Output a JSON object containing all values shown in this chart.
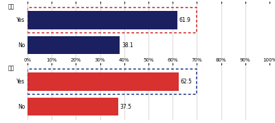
{
  "father_label": "父親",
  "mother_label": "母親",
  "categories": [
    "Yes",
    "No"
  ],
  "father_values": [
    61.9,
    38.1
  ],
  "mother_values": [
    62.5,
    37.5
  ],
  "bar_color_father": "#1a2060",
  "bar_color_mother": "#d93030",
  "box_color_father": "#cc2020",
  "box_color_mother": "#1a3080",
  "axis_ticks": [
    0,
    10,
    20,
    30,
    40,
    50,
    60,
    70,
    80,
    90,
    100
  ],
  "xlim": [
    0,
    100
  ],
  "bg_color": "#ffffff",
  "grid_color": "#bbbbbb",
  "label_fontsize": 5.5,
  "tick_fontsize": 5.0,
  "value_fontsize": 5.5,
  "cat_fontsize": 5.5
}
